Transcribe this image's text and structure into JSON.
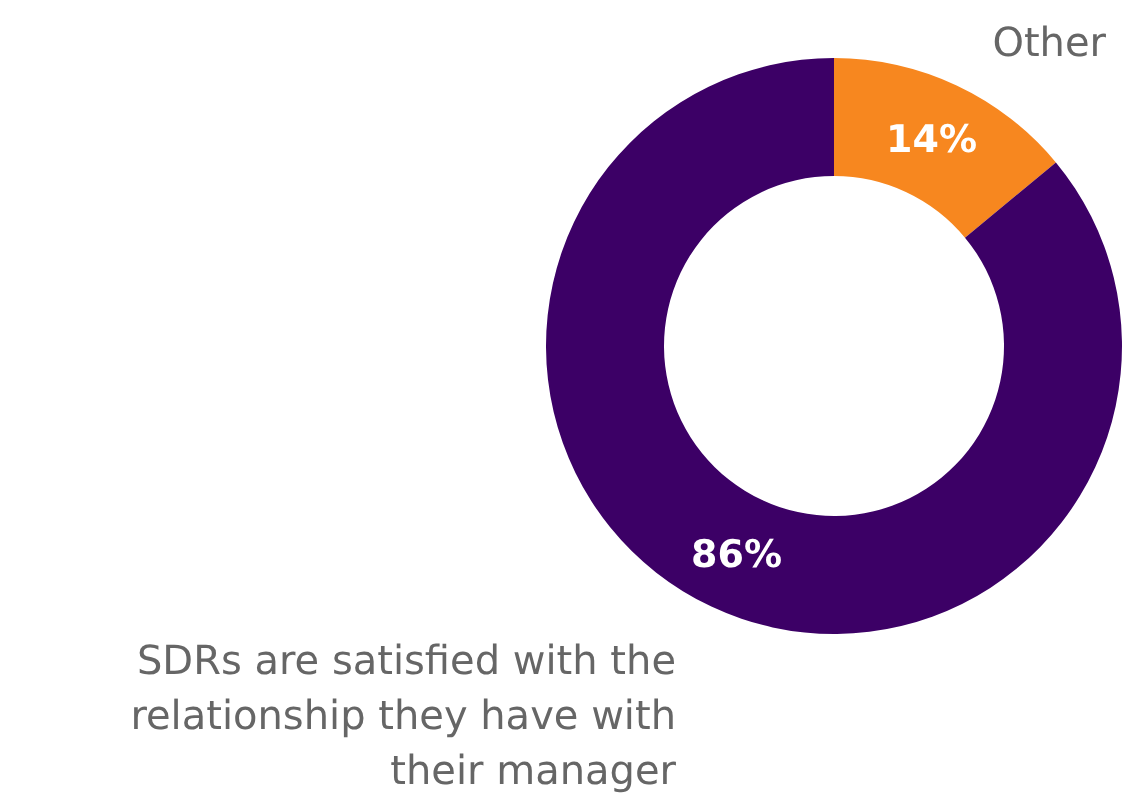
{
  "chart_data": {
    "type": "donut",
    "categories": [
      "Other",
      "SDRs are satisfied with the relationship they have with their manager"
    ],
    "values": [
      14,
      86
    ],
    "colors": [
      "#f7871f",
      "#3c0066"
    ],
    "value_labels": [
      "14%",
      "86%"
    ]
  }
}
